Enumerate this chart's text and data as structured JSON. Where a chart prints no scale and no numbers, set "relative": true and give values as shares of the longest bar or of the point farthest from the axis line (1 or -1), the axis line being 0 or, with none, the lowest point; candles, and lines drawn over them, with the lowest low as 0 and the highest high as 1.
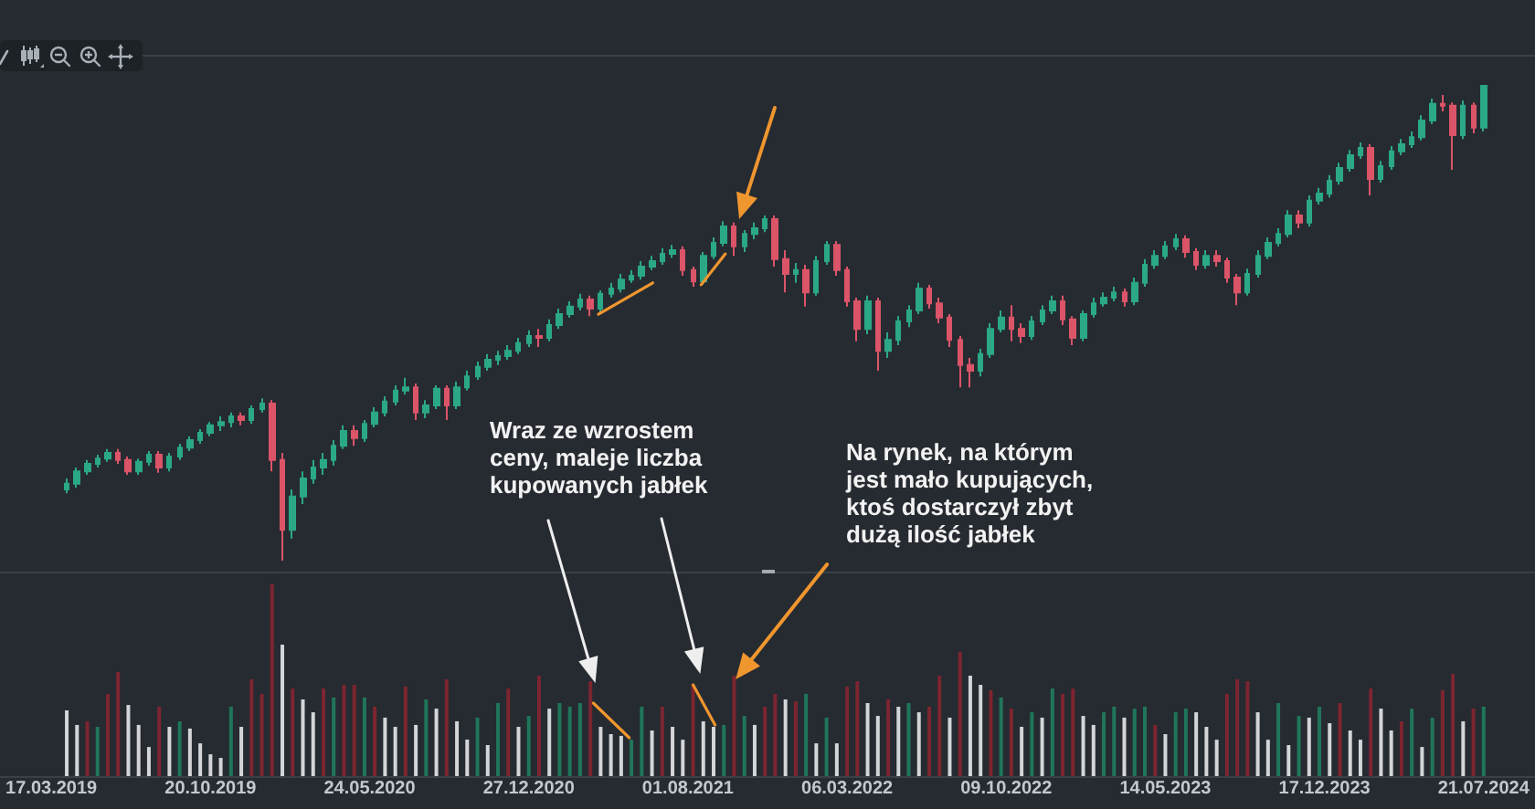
{
  "chart_data": [
    {
      "type": "candlestick",
      "relative": true,
      "xlim": [
        "2019-01-06",
        "2024-09-29"
      ],
      "x": [
        "2019-04-07",
        "2019-04-21",
        "2019-05-05",
        "2019-05-19",
        "2019-06-02",
        "2019-06-16",
        "2019-06-30",
        "2019-07-14",
        "2019-07-28",
        "2019-08-11",
        "2019-08-25",
        "2019-09-08",
        "2019-09-22",
        "2019-10-06",
        "2019-10-20",
        "2019-11-03",
        "2019-11-17",
        "2019-12-01",
        "2019-12-15",
        "2019-12-29",
        "2020-01-12",
        "2020-01-26",
        "2020-02-09",
        "2020-02-23",
        "2020-03-08",
        "2020-03-22",
        "2020-04-05",
        "2020-04-19",
        "2020-05-03",
        "2020-05-17",
        "2020-05-31",
        "2020-06-14",
        "2020-06-28",
        "2020-07-12",
        "2020-07-26",
        "2020-08-09",
        "2020-08-23",
        "2020-09-06",
        "2020-09-20",
        "2020-10-04",
        "2020-10-18",
        "2020-11-01",
        "2020-11-15",
        "2020-11-29",
        "2020-12-13",
        "2020-12-27",
        "2021-01-10",
        "2021-01-24",
        "2021-02-07",
        "2021-02-21",
        "2021-03-07",
        "2021-03-21",
        "2021-04-04",
        "2021-04-18",
        "2021-05-02",
        "2021-05-16",
        "2021-05-30",
        "2021-06-13",
        "2021-06-27",
        "2021-07-11",
        "2021-07-25",
        "2021-08-08",
        "2021-08-22",
        "2021-09-05",
        "2021-09-19",
        "2021-10-03",
        "2021-10-17",
        "2021-10-31",
        "2021-11-14",
        "2021-11-28",
        "2021-12-12",
        "2021-12-26",
        "2022-01-09",
        "2022-01-23",
        "2022-02-06",
        "2022-02-20",
        "2022-03-06",
        "2022-03-20",
        "2022-04-03",
        "2022-04-17",
        "2022-05-01",
        "2022-05-15",
        "2022-05-29",
        "2022-06-12",
        "2022-06-26",
        "2022-07-10",
        "2022-07-24",
        "2022-08-07",
        "2022-08-21",
        "2022-09-04",
        "2022-09-18",
        "2022-10-02",
        "2022-10-16",
        "2022-10-30",
        "2022-11-13",
        "2022-11-27",
        "2022-12-11",
        "2022-12-25",
        "2023-01-08",
        "2023-01-22",
        "2023-02-05",
        "2023-02-19",
        "2023-03-05",
        "2023-03-19",
        "2023-04-02",
        "2023-04-16",
        "2023-04-30",
        "2023-05-14",
        "2023-05-28",
        "2023-06-11",
        "2023-06-25",
        "2023-07-09",
        "2023-07-23",
        "2023-08-06",
        "2023-08-20",
        "2023-09-03",
        "2023-09-17",
        "2023-10-01",
        "2023-10-15",
        "2023-10-29",
        "2023-11-12",
        "2023-11-26",
        "2023-12-10",
        "2023-12-24",
        "2024-01-07",
        "2024-01-21",
        "2024-02-04",
        "2024-02-18",
        "2024-03-03",
        "2024-03-17",
        "2024-03-31",
        "2024-04-14",
        "2024-04-28",
        "2024-05-12",
        "2024-05-26",
        "2024-06-09",
        "2024-06-23",
        "2024-07-07",
        "2024-07-21"
      ],
      "ohlc": [
        [
          0.15,
          0.173,
          0.142,
          0.162
        ],
        [
          0.162,
          0.196,
          0.154,
          0.188
        ],
        [
          0.188,
          0.212,
          0.181,
          0.204
        ],
        [
          0.204,
          0.223,
          0.196,
          0.215
        ],
        [
          0.215,
          0.235,
          0.208,
          0.227
        ],
        [
          0.227,
          0.235,
          0.204,
          0.212
        ],
        [
          0.212,
          0.219,
          0.181,
          0.188
        ],
        [
          0.188,
          0.215,
          0.181,
          0.208
        ],
        [
          0.208,
          0.231,
          0.2,
          0.223
        ],
        [
          0.223,
          0.231,
          0.185,
          0.196
        ],
        [
          0.196,
          0.227,
          0.188,
          0.219
        ],
        [
          0.219,
          0.246,
          0.212,
          0.238
        ],
        [
          0.238,
          0.262,
          0.231,
          0.254
        ],
        [
          0.254,
          0.277,
          0.246,
          0.269
        ],
        [
          0.269,
          0.292,
          0.262,
          0.285
        ],
        [
          0.285,
          0.304,
          0.273,
          0.292
        ],
        [
          0.292,
          0.312,
          0.281,
          0.304
        ],
        [
          0.304,
          0.312,
          0.285,
          0.296
        ],
        [
          0.296,
          0.327,
          0.288,
          0.319
        ],
        [
          0.319,
          0.342,
          0.312,
          0.331
        ],
        [
          0.331,
          0.338,
          0.188,
          0.212
        ],
        [
          0.212,
          0.227,
          0,
          0.065
        ],
        [
          0.065,
          0.15,
          0.046,
          0.135
        ],
        [
          0.135,
          0.188,
          0.119,
          0.173
        ],
        [
          0.173,
          0.212,
          0.162,
          0.196
        ],
        [
          0.196,
          0.227,
          0.181,
          0.212
        ],
        [
          0.212,
          0.254,
          0.2,
          0.242
        ],
        [
          0.242,
          0.285,
          0.235,
          0.273
        ],
        [
          0.273,
          0.285,
          0.242,
          0.258
        ],
        [
          0.258,
          0.296,
          0.25,
          0.288
        ],
        [
          0.288,
          0.323,
          0.281,
          0.312
        ],
        [
          0.312,
          0.346,
          0.304,
          0.335
        ],
        [
          0.335,
          0.369,
          0.327,
          0.358
        ],
        [
          0.358,
          0.385,
          0.35,
          0.365
        ],
        [
          0.365,
          0.373,
          0.296,
          0.312
        ],
        [
          0.312,
          0.338,
          0.3,
          0.327
        ],
        [
          0.327,
          0.369,
          0.319,
          0.362
        ],
        [
          0.362,
          0.369,
          0.296,
          0.327
        ],
        [
          0.327,
          0.377,
          0.319,
          0.365
        ],
        [
          0.365,
          0.4,
          0.358,
          0.388
        ],
        [
          0.388,
          0.419,
          0.381,
          0.408
        ],
        [
          0.408,
          0.435,
          0.4,
          0.423
        ],
        [
          0.423,
          0.442,
          0.412,
          0.431
        ],
        [
          0.431,
          0.454,
          0.423,
          0.442
        ],
        [
          0.442,
          0.469,
          0.435,
          0.458
        ],
        [
          0.458,
          0.485,
          0.45,
          0.473
        ],
        [
          0.473,
          0.488,
          0.45,
          0.469
        ],
        [
          0.469,
          0.508,
          0.462,
          0.496
        ],
        [
          0.496,
          0.531,
          0.488,
          0.519
        ],
        [
          0.519,
          0.546,
          0.512,
          0.535
        ],
        [
          0.535,
          0.562,
          0.527,
          0.55
        ],
        [
          0.55,
          0.558,
          0.515,
          0.531
        ],
        [
          0.531,
          0.569,
          0.523,
          0.562
        ],
        [
          0.562,
          0.585,
          0.554,
          0.573
        ],
        [
          0.573,
          0.604,
          0.565,
          0.592
        ],
        [
          0.592,
          0.612,
          0.585,
          0.6
        ],
        [
          0.6,
          0.631,
          0.592,
          0.619
        ],
        [
          0.619,
          0.642,
          0.612,
          0.631
        ],
        [
          0.631,
          0.658,
          0.623,
          0.646
        ],
        [
          0.646,
          0.665,
          0.638,
          0.654
        ],
        [
          0.654,
          0.662,
          0.6,
          0.612
        ],
        [
          0.612,
          0.619,
          0.577,
          0.588
        ],
        [
          0.588,
          0.65,
          0.581,
          0.642
        ],
        [
          0.642,
          0.681,
          0.635,
          0.669
        ],
        [
          0.669,
          0.715,
          0.662,
          0.704
        ],
        [
          0.704,
          0.712,
          0.642,
          0.662
        ],
        [
          0.662,
          0.696,
          0.65,
          0.688
        ],
        [
          0.688,
          0.712,
          0.677,
          0.7
        ],
        [
          0.7,
          0.727,
          0.692,
          0.719
        ],
        [
          0.719,
          0.727,
          0.619,
          0.635
        ],
        [
          0.635,
          0.654,
          0.565,
          0.604
        ],
        [
          0.604,
          0.627,
          0.585,
          0.612
        ],
        [
          0.612,
          0.623,
          0.535,
          0.565
        ],
        [
          0.565,
          0.642,
          0.558,
          0.631
        ],
        [
          0.631,
          0.673,
          0.623,
          0.665
        ],
        [
          0.665,
          0.673,
          0.6,
          0.612
        ],
        [
          0.612,
          0.619,
          0.535,
          0.546
        ],
        [
          0.546,
          0.554,
          0.462,
          0.488
        ],
        [
          0.488,
          0.558,
          0.477,
          0.546
        ],
        [
          0.546,
          0.554,
          0.4,
          0.442
        ],
        [
          0.442,
          0.481,
          0.427,
          0.465
        ],
        [
          0.465,
          0.515,
          0.454,
          0.504
        ],
        [
          0.504,
          0.538,
          0.492,
          0.527
        ],
        [
          0.527,
          0.585,
          0.519,
          0.573
        ],
        [
          0.573,
          0.581,
          0.531,
          0.542
        ],
        [
          0.542,
          0.554,
          0.5,
          0.512
        ],
        [
          0.512,
          0.519,
          0.45,
          0.465
        ],
        [
          0.465,
          0.473,
          0.365,
          0.412
        ],
        [
          0.412,
          0.427,
          0.365,
          0.4
        ],
        [
          0.4,
          0.446,
          0.388,
          0.435
        ],
        [
          0.435,
          0.5,
          0.427,
          0.488
        ],
        [
          0.488,
          0.527,
          0.481,
          0.512
        ],
        [
          0.512,
          0.538,
          0.462,
          0.488
        ],
        [
          0.488,
          0.5,
          0.458,
          0.473
        ],
        [
          0.473,
          0.515,
          0.465,
          0.504
        ],
        [
          0.504,
          0.538,
          0.496,
          0.527
        ],
        [
          0.527,
          0.558,
          0.519,
          0.546
        ],
        [
          0.546,
          0.558,
          0.496,
          0.508
        ],
        [
          0.508,
          0.515,
          0.454,
          0.469
        ],
        [
          0.469,
          0.527,
          0.462,
          0.519
        ],
        [
          0.519,
          0.554,
          0.512,
          0.542
        ],
        [
          0.542,
          0.565,
          0.535,
          0.554
        ],
        [
          0.554,
          0.577,
          0.546,
          0.565
        ],
        [
          0.565,
          0.573,
          0.535,
          0.546
        ],
        [
          0.546,
          0.596,
          0.538,
          0.585
        ],
        [
          0.585,
          0.635,
          0.577,
          0.623
        ],
        [
          0.623,
          0.654,
          0.615,
          0.642
        ],
        [
          0.642,
          0.673,
          0.635,
          0.662
        ],
        [
          0.662,
          0.688,
          0.654,
          0.677
        ],
        [
          0.677,
          0.685,
          0.638,
          0.65
        ],
        [
          0.65,
          0.658,
          0.612,
          0.623
        ],
        [
          0.623,
          0.654,
          0.615,
          0.642
        ],
        [
          0.642,
          0.654,
          0.619,
          0.631
        ],
        [
          0.631,
          0.638,
          0.585,
          0.596
        ],
        [
          0.596,
          0.604,
          0.538,
          0.565
        ],
        [
          0.565,
          0.615,
          0.558,
          0.604
        ],
        [
          0.604,
          0.654,
          0.596,
          0.642
        ],
        [
          0.642,
          0.681,
          0.635,
          0.669
        ],
        [
          0.669,
          0.7,
          0.662,
          0.688
        ],
        [
          0.688,
          0.738,
          0.681,
          0.727
        ],
        [
          0.727,
          0.738,
          0.7,
          0.712
        ],
        [
          0.712,
          0.769,
          0.704,
          0.758
        ],
        [
          0.758,
          0.785,
          0.75,
          0.773
        ],
        [
          0.773,
          0.812,
          0.765,
          0.8
        ],
        [
          0.8,
          0.838,
          0.792,
          0.827
        ],
        [
          0.827,
          0.865,
          0.819,
          0.854
        ],
        [
          0.854,
          0.881,
          0.846,
          0.869
        ],
        [
          0.869,
          0.877,
          0.769,
          0.804
        ],
        [
          0.804,
          0.842,
          0.796,
          0.831
        ],
        [
          0.831,
          0.873,
          0.823,
          0.862
        ],
        [
          0.862,
          0.888,
          0.854,
          0.877
        ],
        [
          0.877,
          0.904,
          0.869,
          0.892
        ],
        [
          0.892,
          0.938,
          0.885,
          0.927
        ],
        [
          0.927,
          0.973,
          0.919,
          0.962
        ],
        [
          0.962,
          0.981,
          0.946,
          0.958
        ],
        [
          0.958,
          0.965,
          0.823,
          0.896
        ],
        [
          0.896,
          0.969,
          0.888,
          0.958
        ],
        [
          0.958,
          0.965,
          0.9,
          0.912
        ],
        [
          0.912,
          1,
          0.904,
          1
        ]
      ],
      "colors": [
        "#2ba886",
        "#2ba886",
        "#2ba886",
        "#2ba886",
        "#2ba886",
        "#db5468",
        "#db5468",
        "#2ba886",
        "#2ba886",
        "#db5468",
        "#2ba886",
        "#2ba886",
        "#2ba886",
        "#2ba886",
        "#2ba886",
        "#2ba886",
        "#2ba886",
        "#db5468",
        "#2ba886",
        "#2ba886",
        "#db5468",
        "#db5468",
        "#2ba886",
        "#2ba886",
        "#2ba886",
        "#2ba886",
        "#2ba886",
        "#2ba886",
        "#db5468",
        "#2ba886",
        "#2ba886",
        "#2ba886",
        "#2ba886",
        "#2ba886",
        "#db5468",
        "#2ba886",
        "#2ba886",
        "#db5468",
        "#2ba886",
        "#2ba886",
        "#2ba886",
        "#2ba886",
        "#2ba886",
        "#2ba886",
        "#2ba886",
        "#2ba886",
        "#db5468",
        "#2ba886",
        "#2ba886",
        "#2ba886",
        "#2ba886",
        "#db5468",
        "#2ba886",
        "#2ba886",
        "#2ba886",
        "#2ba886",
        "#2ba886",
        "#2ba886",
        "#2ba886",
        "#2ba886",
        "#db5468",
        "#db5468",
        "#2ba886",
        "#2ba886",
        "#2ba886",
        "#db5468",
        "#2ba886",
        "#2ba886",
        "#2ba886",
        "#db5468",
        "#db5468",
        "#2ba886",
        "#db5468",
        "#2ba886",
        "#2ba886",
        "#db5468",
        "#db5468",
        "#db5468",
        "#2ba886",
        "#db5468",
        "#2ba886",
        "#2ba886",
        "#2ba886",
        "#2ba886",
        "#db5468",
        "#db5468",
        "#db5468",
        "#db5468",
        "#db5468",
        "#2ba886",
        "#2ba886",
        "#2ba886",
        "#db5468",
        "#db5468",
        "#2ba886",
        "#2ba886",
        "#2ba886",
        "#db5468",
        "#db5468",
        "#2ba886",
        "#2ba886",
        "#2ba886",
        "#2ba886",
        "#db5468",
        "#2ba886",
        "#2ba886",
        "#2ba886",
        "#2ba886",
        "#2ba886",
        "#db5468",
        "#db5468",
        "#2ba886",
        "#db5468",
        "#db5468",
        "#db5468",
        "#2ba886",
        "#2ba886",
        "#2ba886",
        "#2ba886",
        "#2ba886",
        "#db5468",
        "#2ba886",
        "#2ba886",
        "#2ba886",
        "#2ba886",
        "#2ba886",
        "#2ba886",
        "#db5468",
        "#2ba886",
        "#2ba886",
        "#2ba886",
        "#2ba886",
        "#2ba886",
        "#2ba886",
        "#db5468",
        "#db5468",
        "#2ba886",
        "#db5468",
        "#2ba886"
      ],
      "series": [
        {
          "type": "line",
          "color": "#f0962f",
          "x": [
            "2021-04-01",
            "2021-06-14"
          ],
          "values": [
            0.519,
            0.585
          ]
        },
        {
          "type": "line",
          "color": "#f0962f",
          "x": [
            "2021-08-19",
            "2021-09-21"
          ],
          "values": [
            0.581,
            0.646
          ]
        }
      ],
      "annotations": [
        "Wraz ze wzrostem\nceny, maleje liczba\nkupowanych jabłek",
        "Na rynek, na którym\njest mało kupujących,\nktoś dostarczył zbyt\ndużą ilość jabłek"
      ]
    },
    {
      "type": "bar",
      "relative": true,
      "tick_labels": "x",
      "xlim": [
        "2019-01-06",
        "2024-09-29"
      ],
      "xticks": [
        {
          "value": "2019-03-17",
          "label": "17.03.2019"
        },
        {
          "value": "2019-10-20",
          "label": "20.10.2019"
        },
        {
          "value": "2020-05-24",
          "label": "24.05.2020"
        },
        {
          "value": "2020-12-27",
          "label": "27.12.2020"
        },
        {
          "value": "2021-08-01",
          "label": "01.08.2021"
        },
        {
          "value": "2022-03-06",
          "label": "06.03.2022"
        },
        {
          "value": "2022-10-09",
          "label": "09.10.2022"
        },
        {
          "value": "2023-05-14",
          "label": "14.05.2023"
        },
        {
          "value": "2023-12-17",
          "label": "17.12.2023"
        },
        {
          "value": "2024-07-21",
          "label": "21.07.2024"
        }
      ],
      "x": [
        "2019-04-07",
        "2019-04-21",
        "2019-05-05",
        "2019-05-19",
        "2019-06-02",
        "2019-06-16",
        "2019-06-30",
        "2019-07-14",
        "2019-07-28",
        "2019-08-11",
        "2019-08-25",
        "2019-09-08",
        "2019-09-22",
        "2019-10-06",
        "2019-10-20",
        "2019-11-03",
        "2019-11-17",
        "2019-12-01",
        "2019-12-15",
        "2019-12-29",
        "2020-01-12",
        "2020-01-26",
        "2020-02-09",
        "2020-02-23",
        "2020-03-08",
        "2020-03-22",
        "2020-04-05",
        "2020-04-19",
        "2020-05-03",
        "2020-05-17",
        "2020-05-31",
        "2020-06-14",
        "2020-06-28",
        "2020-07-12",
        "2020-07-26",
        "2020-08-09",
        "2020-08-23",
        "2020-09-06",
        "2020-09-20",
        "2020-10-04",
        "2020-10-18",
        "2020-11-01",
        "2020-11-15",
        "2020-11-29",
        "2020-12-13",
        "2020-12-27",
        "2021-01-10",
        "2021-01-24",
        "2021-02-07",
        "2021-02-21",
        "2021-03-07",
        "2021-03-21",
        "2021-04-04",
        "2021-04-18",
        "2021-05-02",
        "2021-05-16",
        "2021-05-30",
        "2021-06-13",
        "2021-06-27",
        "2021-07-11",
        "2021-07-25",
        "2021-08-08",
        "2021-08-22",
        "2021-09-05",
        "2021-09-19",
        "2021-10-03",
        "2021-10-17",
        "2021-10-31",
        "2021-11-14",
        "2021-11-28",
        "2021-12-12",
        "2021-12-26",
        "2022-01-09",
        "2022-01-23",
        "2022-02-06",
        "2022-02-20",
        "2022-03-06",
        "2022-03-20",
        "2022-04-03",
        "2022-04-17",
        "2022-05-01",
        "2022-05-15",
        "2022-05-29",
        "2022-06-12",
        "2022-06-26",
        "2022-07-10",
        "2022-07-24",
        "2022-08-07",
        "2022-08-21",
        "2022-09-04",
        "2022-09-18",
        "2022-10-02",
        "2022-10-16",
        "2022-10-30",
        "2022-11-13",
        "2022-11-27",
        "2022-12-11",
        "2022-12-25",
        "2023-01-08",
        "2023-01-22",
        "2023-02-05",
        "2023-02-19",
        "2023-03-05",
        "2023-03-19",
        "2023-04-02",
        "2023-04-16",
        "2023-04-30",
        "2023-05-14",
        "2023-05-28",
        "2023-06-11",
        "2023-06-25",
        "2023-07-09",
        "2023-07-23",
        "2023-08-06",
        "2023-08-20",
        "2023-09-03",
        "2023-09-17",
        "2023-10-01",
        "2023-10-15",
        "2023-10-29",
        "2023-11-12",
        "2023-11-26",
        "2023-12-10",
        "2023-12-24",
        "2024-01-07",
        "2024-01-21",
        "2024-02-04",
        "2024-02-18",
        "2024-03-03",
        "2024-03-17",
        "2024-03-31",
        "2024-04-14",
        "2024-04-28",
        "2024-05-12",
        "2024-05-26",
        "2024-06-09",
        "2024-06-23",
        "2024-07-07",
        "2024-07-21"
      ],
      "series": [
        {
          "type": "bar",
          "values": [
            0.343,
            0.267,
            0.286,
            0.257,
            0.429,
            0.543,
            0.371,
            0.267,
            0.152,
            0.362,
            0.257,
            0.286,
            0.248,
            0.171,
            0.114,
            0.095,
            0.362,
            0.257,
            0.505,
            0.429,
            1,
            0.686,
            0.457,
            0.4,
            0.333,
            0.457,
            0.41,
            0.476,
            0.476,
            0.41,
            0.362,
            0.305,
            0.257,
            0.467,
            0.267,
            0.4,
            0.352,
            0.505,
            0.286,
            0.19,
            0.305,
            0.162,
            0.381,
            0.457,
            0.257,
            0.314,
            0.524,
            0.352,
            0.381,
            0.362,
            0.381,
            0.495,
            0.257,
            0.219,
            0.21,
            0.19,
            0.362,
            0.238,
            0.362,
            0.257,
            0.19,
            0.476,
            0.286,
            0.257,
            0.267,
            0.524,
            0.314,
            0.267,
            0.362,
            0.429,
            0.4,
            0.39,
            0.429,
            0.171,
            0.305,
            0.171,
            0.467,
            0.495,
            0.381,
            0.314,
            0.4,
            0.362,
            0.381,
            0.333,
            0.362,
            0.524,
            0.305,
            0.648,
            0.524,
            0.476,
            0.448,
            0.41,
            0.352,
            0.257,
            0.333,
            0.305,
            0.457,
            0.429,
            0.457,
            0.314,
            0.267,
            0.333,
            0.362,
            0.305,
            0.352,
            0.362,
            0.267,
            0.219,
            0.333,
            0.352,
            0.333,
            0.257,
            0.19,
            0.429,
            0.505,
            0.495,
            0.333,
            0.19,
            0.381,
            0.162,
            0.314,
            0.305,
            0.362,
            0.276,
            0.381,
            0.238,
            0.19,
            0.457,
            0.352,
            0.238,
            0.286,
            0.352,
            0.152,
            0.305,
            0.448,
            0.533,
            0.286,
            0.352,
            0.362
          ],
          "colors": [
            "#d3d5d8",
            "#d3d5d8",
            "#7c2530",
            "#1f7659",
            "#7c2530",
            "#7c2530",
            "#d3d5d8",
            "#d3d5d8",
            "#d3d5d8",
            "#7c2530",
            "#d3d5d8",
            "#1f7659",
            "#d3d5d8",
            "#d3d5d8",
            "#d3d5d8",
            "#d3d5d8",
            "#1f7659",
            "#d3d5d8",
            "#7c2530",
            "#7c2530",
            "#7c2530",
            "#d3d5d8",
            "#7c2530",
            "#d3d5d8",
            "#d3d5d8",
            "#7c2530",
            "#1f7659",
            "#7c2530",
            "#7c2530",
            "#1f7659",
            "#7c2530",
            "#d3d5d8",
            "#d3d5d8",
            "#7c2530",
            "#d3d5d8",
            "#1f7659",
            "#d3d5d8",
            "#7c2530",
            "#d3d5d8",
            "#d3d5d8",
            "#1f7659",
            "#d3d5d8",
            "#1f7659",
            "#7c2530",
            "#d3d5d8",
            "#1f7659",
            "#7c2530",
            "#d3d5d8",
            "#1f7659",
            "#1f7659",
            "#1f7659",
            "#7c2530",
            "#d3d5d8",
            "#d3d5d8",
            "#d3d5d8",
            "#1f7659",
            "#1f7659",
            "#d3d5d8",
            "#7c2530",
            "#d3d5d8",
            "#d3d5d8",
            "#7c2530",
            "#d3d5d8",
            "#d3d5d8",
            "#1f7659",
            "#7c2530",
            "#1f7659",
            "#d3d5d8",
            "#7c2530",
            "#7c2530",
            "#d3d5d8",
            "#7c2530",
            "#1f7659",
            "#d3d5d8",
            "#1f7659",
            "#d3d5d8",
            "#7c2530",
            "#7c2530",
            "#d3d5d8",
            "#d3d5d8",
            "#7c2530",
            "#d3d5d8",
            "#1f7659",
            "#d3d5d8",
            "#7c2530",
            "#7c2530",
            "#d3d5d8",
            "#7c2530",
            "#d3d5d8",
            "#d3d5d8",
            "#7c2530",
            "#1f7659",
            "#7c2530",
            "#d3d5d8",
            "#1f7659",
            "#d3d5d8",
            "#1f7659",
            "#7c2530",
            "#7c2530",
            "#d3d5d8",
            "#d3d5d8",
            "#1f7659",
            "#1f7659",
            "#d3d5d8",
            "#1f7659",
            "#1f7659",
            "#7c2530",
            "#d3d5d8",
            "#1f7659",
            "#1f7659",
            "#d3d5d8",
            "#d3d5d8",
            "#d3d5d8",
            "#7c2530",
            "#7c2530",
            "#7c2530",
            "#d3d5d8",
            "#d3d5d8",
            "#1f7659",
            "#d3d5d8",
            "#1f7659",
            "#d3d5d8",
            "#1f7659",
            "#d3d5d8",
            "#7c2530",
            "#d3d5d8",
            "#d3d5d8",
            "#7c2530",
            "#d3d5d8",
            "#d3d5d8",
            "#7c2530",
            "#1f7659",
            "#d3d5d8",
            "#1f7659",
            "#7c2530",
            "#7c2530",
            "#d3d5d8",
            "#7c2530",
            "#1f7659"
          ]
        },
        {
          "type": "line",
          "color": "#f0962f",
          "x": [
            "2021-03-25",
            "2021-05-13"
          ],
          "values": [
            0.381,
            0.2
          ]
        },
        {
          "type": "line",
          "color": "#f0962f",
          "x": [
            "2021-08-08",
            "2021-09-07"
          ],
          "values": [
            0.476,
            0.267
          ]
        }
      ]
    }
  ]
}
